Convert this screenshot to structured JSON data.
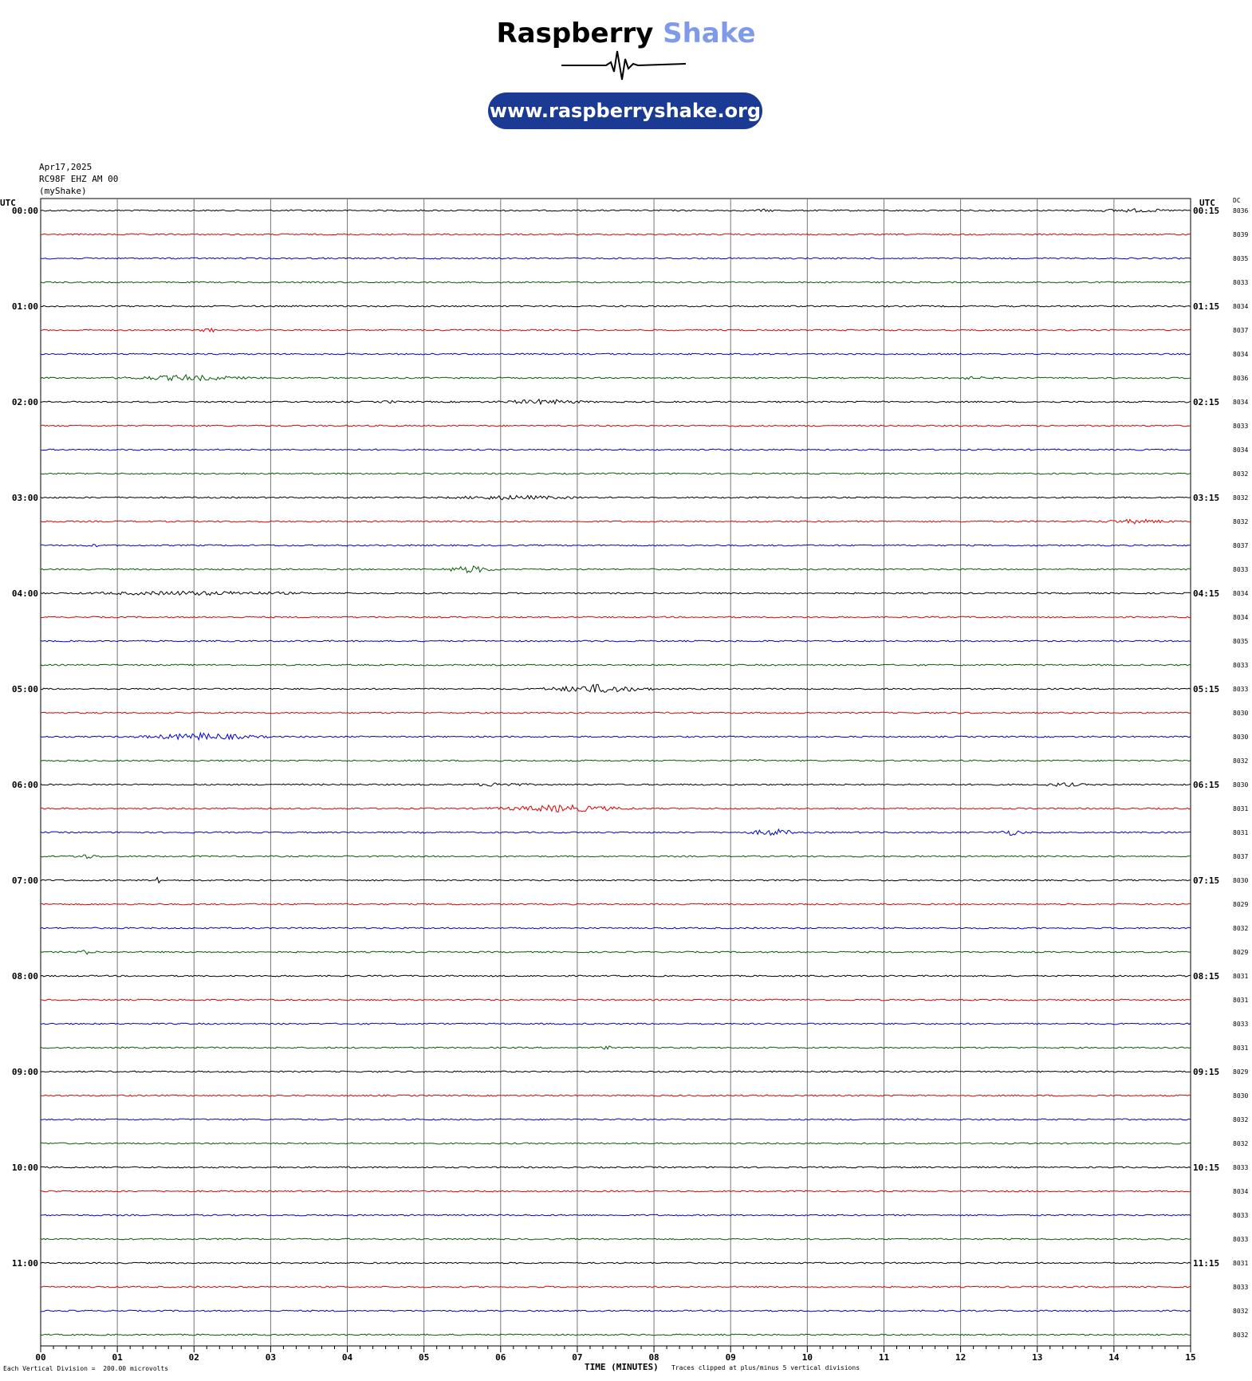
{
  "header": {
    "brand_part1": "Raspberry",
    "brand_part2": "Shake",
    "url": "www.raspberryshake.org",
    "brand_colors": {
      "dark": "#000000",
      "accent": "#7f9ae8",
      "pill": "#1a3a93"
    }
  },
  "meta": {
    "date": "Apr17,2025",
    "station": "RC98F EHZ AM 00",
    "source": "(myShake)"
  },
  "labels": {
    "utc_left": "UTC",
    "utc_right": "UTC",
    "dc": "DC",
    "footer_left": "Each Vertical Division =  200.00 microvolts",
    "footer_mid": "TIME (MINUTES)",
    "footer_right": "Traces clipped at plus/minus 5 vertical divisions"
  },
  "chart_data": {
    "type": "line",
    "title": "",
    "xlabel": "TIME (MINUTES)",
    "xlim": [
      0,
      15
    ],
    "x_ticks": [
      "00",
      "01",
      "02",
      "03",
      "04",
      "05",
      "06",
      "07",
      "08",
      "09",
      "10",
      "11",
      "12",
      "13",
      "14",
      "15"
    ],
    "grid": true,
    "trace_colors": [
      "#000000",
      "#e00000",
      "#0000d0",
      "#006000"
    ],
    "left_hour_labels": [
      "00:00",
      "01:00",
      "02:00",
      "03:00",
      "04:00",
      "05:00",
      "06:00",
      "07:00",
      "08:00",
      "09:00",
      "10:00",
      "11:00"
    ],
    "right_hour_labels": [
      "00:15",
      "01:15",
      "02:15",
      "03:15",
      "04:15",
      "05:15",
      "06:15",
      "07:15",
      "08:15",
      "09:15",
      "10:15",
      "11:15"
    ],
    "dc_values": [
      "8036",
      "8039",
      "8035",
      "8033",
      "8034",
      "8037",
      "8034",
      "8036",
      "8034",
      "8033",
      "8034",
      "8032",
      "8032",
      "8032",
      "8037",
      "8033",
      "8034",
      "8034",
      "8035",
      "8033",
      "8033",
      "8030",
      "8030",
      "8032",
      "8030",
      "8031",
      "8031",
      "8037",
      "8030",
      "8029",
      "8032",
      "8029",
      "8031",
      "8031",
      "8033",
      "8031",
      "8029",
      "8030",
      "8032",
      "8032",
      "8033",
      "8034",
      "8033",
      "8033",
      "8031",
      "8033",
      "8032",
      "8032"
    ],
    "bursts": [
      {
        "trace": 0,
        "start": 9.2,
        "end": 9.7,
        "amp": 2
      },
      {
        "trace": 0,
        "start": 13.5,
        "end": 15.0,
        "amp": 2.5
      },
      {
        "trace": 3,
        "start": 13.2,
        "end": 13.9,
        "amp": 2
      },
      {
        "trace": 5,
        "start": 2.0,
        "end": 2.4,
        "amp": 3
      },
      {
        "trace": 7,
        "start": 0.9,
        "end": 2.9,
        "amp": 4
      },
      {
        "trace": 7,
        "start": 11.6,
        "end": 12.7,
        "amp": 2
      },
      {
        "trace": 8,
        "start": 4.3,
        "end": 4.8,
        "amp": 2
      },
      {
        "trace": 8,
        "start": 5.8,
        "end": 7.3,
        "amp": 3.5
      },
      {
        "trace": 9,
        "start": 9.0,
        "end": 9.2,
        "amp": 2
      },
      {
        "trace": 12,
        "start": 5.0,
        "end": 7.3,
        "amp": 3
      },
      {
        "trace": 13,
        "start": 13.6,
        "end": 15.0,
        "amp": 3
      },
      {
        "trace": 14,
        "start": 0.5,
        "end": 0.9,
        "amp": 2
      },
      {
        "trace": 15,
        "start": 5.2,
        "end": 6.0,
        "amp": 5
      },
      {
        "trace": 16,
        "start": 0.0,
        "end": 4.0,
        "amp": 3
      },
      {
        "trace": 20,
        "start": 6.5,
        "end": 8.0,
        "amp": 6
      },
      {
        "trace": 22,
        "start": 1.2,
        "end": 3.0,
        "amp": 5
      },
      {
        "trace": 23,
        "start": 9.1,
        "end": 9.5,
        "amp": 2
      },
      {
        "trace": 24,
        "start": 5.5,
        "end": 6.5,
        "amp": 3
      },
      {
        "trace": 24,
        "start": 13.0,
        "end": 13.7,
        "amp": 3
      },
      {
        "trace": 25,
        "start": 5.8,
        "end": 7.8,
        "amp": 5
      },
      {
        "trace": 26,
        "start": 9.2,
        "end": 9.9,
        "amp": 5
      },
      {
        "trace": 26,
        "start": 12.4,
        "end": 12.9,
        "amp": 4
      },
      {
        "trace": 27,
        "start": 0.3,
        "end": 0.9,
        "amp": 3
      },
      {
        "trace": 28,
        "start": 1.5,
        "end": 1.55,
        "amp": 10
      },
      {
        "trace": 31,
        "start": 0.4,
        "end": 0.8,
        "amp": 3
      },
      {
        "trace": 35,
        "start": 7.3,
        "end": 7.45,
        "amp": 4
      }
    ]
  }
}
